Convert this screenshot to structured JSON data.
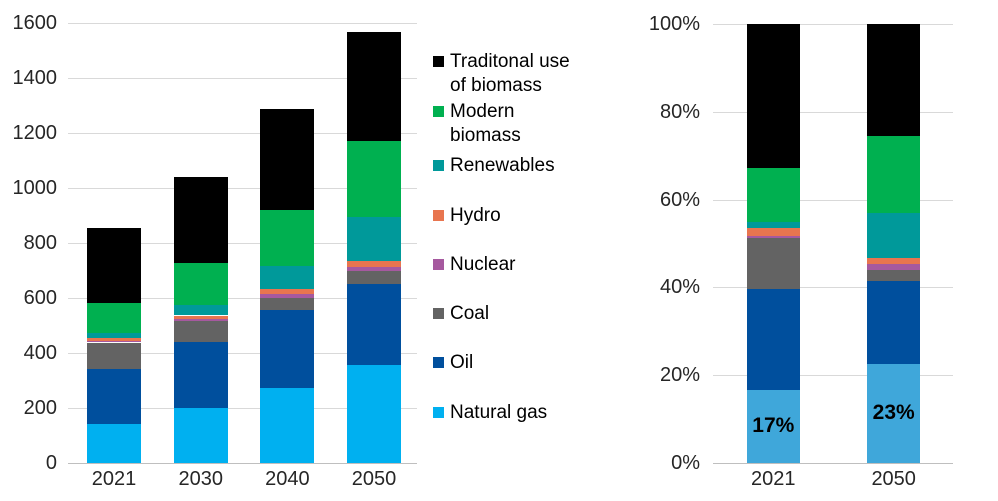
{
  "chart_data": [
    {
      "type": "bar",
      "stacked": true,
      "title": "",
      "xlabel": "",
      "ylabel": "",
      "grid": true,
      "categories": [
        "2021",
        "2030",
        "2040",
        "2050"
      ],
      "series": [
        {
          "name": "Natural gas",
          "color": "#00B0F0",
          "values": [
            140,
            200,
            270,
            355
          ]
        },
        {
          "name": "Oil",
          "color": "#004F9D",
          "values": [
            200,
            240,
            285,
            295
          ]
        },
        {
          "name": "Coal",
          "color": "#636363",
          "values": [
            97,
            76,
            44,
            46
          ]
        },
        {
          "name": "Nuclear",
          "color": "#A6599F",
          "values": [
            7,
            5,
            14,
            15
          ]
        },
        {
          "name": "Hydro",
          "color": "#E8754F",
          "values": [
            11,
            14,
            20,
            22
          ]
        },
        {
          "name": "Renewables",
          "color": "#00999A",
          "values": [
            16,
            39,
            83,
            160
          ]
        },
        {
          "name": "Modern biomass",
          "color": "#00B050",
          "values": [
            109,
            151,
            204,
            277
          ]
        },
        {
          "name": "Traditonal use of biomass",
          "color": "#000000",
          "values": [
            275,
            315,
            365,
            395
          ]
        }
      ],
      "totals": [
        855,
        1040,
        1285,
        1565
      ],
      "ylim": [
        0,
        1600
      ],
      "ytick_values": [
        0,
        200,
        400,
        600,
        800,
        1000,
        1200,
        1400,
        1600
      ],
      "ytick_labels": [
        "0",
        "200",
        "400",
        "600",
        "800",
        "1000",
        "1200",
        "1400",
        "1600"
      ]
    },
    {
      "type": "bar",
      "stacked": true,
      "title": "",
      "xlabel": "",
      "ylabel": "",
      "grid": true,
      "unit": "%",
      "categories": [
        "2021",
        "2050"
      ],
      "series": [
        {
          "name": "Natural gas",
          "color": "#3FA7DA",
          "values": [
            16.5,
            22.5
          ]
        },
        {
          "name": "Oil",
          "color": "#004F9D",
          "values": [
            23.0,
            19.0
          ]
        },
        {
          "name": "Coal",
          "color": "#636363",
          "values": [
            11.7,
            2.5
          ]
        },
        {
          "name": "Nuclear",
          "color": "#A6599F",
          "values": [
            0.5,
            1.2
          ]
        },
        {
          "name": "Hydro",
          "color": "#E8754F",
          "values": [
            1.7,
            1.4
          ]
        },
        {
          "name": "Renewables",
          "color": "#00999A",
          "values": [
            1.4,
            10.4
          ]
        },
        {
          "name": "Modern biomass",
          "color": "#00B050",
          "values": [
            12.5,
            17.5
          ]
        },
        {
          "name": "Traditonal use of biomass",
          "color": "#000000",
          "values": [
            32.7,
            25.5
          ]
        }
      ],
      "ylim": [
        0,
        100
      ],
      "ytick_values": [
        0,
        20,
        40,
        60,
        80,
        100
      ],
      "ytick_labels": [
        "0%",
        "20%",
        "40%",
        "60%",
        "80%",
        "100%"
      ],
      "bar_labels": [
        {
          "category": "2021",
          "series": "Natural gas",
          "text": "17%"
        },
        {
          "category": "2050",
          "series": "Natural gas",
          "text": "23%"
        }
      ]
    }
  ],
  "legend": {
    "items": [
      {
        "label_lines": [
          "Traditonal use",
          "of biomass"
        ],
        "color": "#000000"
      },
      {
        "label_lines": [
          "Modern",
          "biomass"
        ],
        "color": "#00B050"
      },
      {
        "label_lines": [
          "Renewables"
        ],
        "color": "#00999A"
      },
      {
        "label_lines": [
          "Hydro"
        ],
        "color": "#E8754F"
      },
      {
        "label_lines": [
          "Nuclear"
        ],
        "color": "#A6599F"
      },
      {
        "label_lines": [
          "Coal"
        ],
        "color": "#636363"
      },
      {
        "label_lines": [
          "Oil"
        ],
        "color": "#004F9D"
      },
      {
        "label_lines": [
          "Natural gas"
        ],
        "color": "#00B0F0"
      }
    ]
  }
}
